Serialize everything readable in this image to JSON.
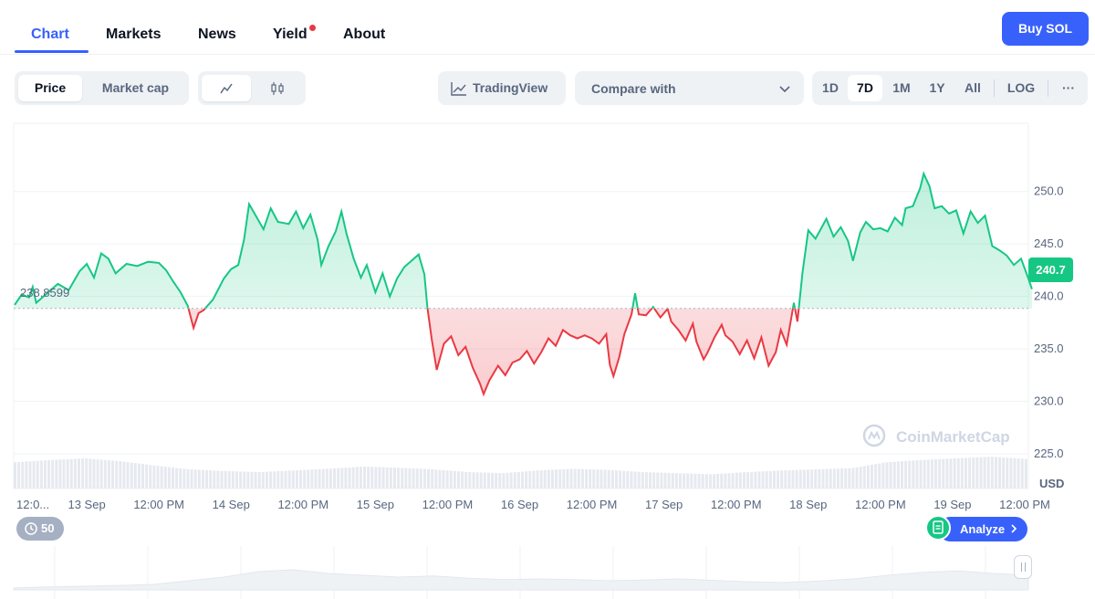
{
  "nav": {
    "tabs": [
      {
        "label": "Chart",
        "active": true
      },
      {
        "label": "Markets"
      },
      {
        "label": "News"
      },
      {
        "label": "Yield",
        "has_dot": true
      },
      {
        "label": "About"
      }
    ],
    "buy_label": "Buy SOL"
  },
  "toolbar": {
    "metric_tabs": [
      "Price",
      "Market cap"
    ],
    "metric_active": "Price",
    "chart_types": [
      "line-chart-icon",
      "candlestick-icon"
    ],
    "tradingview_label": "TradingView",
    "compare_label": "Compare with",
    "ranges": [
      "1D",
      "7D",
      "1M",
      "1Y",
      "All",
      "LOG"
    ],
    "range_active": "7D",
    "more_label": "···"
  },
  "chart_data": {
    "type": "line",
    "ylabel": "USD",
    "yticks": [
      "250.0",
      "245.0",
      "240.0",
      "235.0",
      "230.0",
      "225.0"
    ],
    "ylim": [
      221.7,
      256.5
    ],
    "baseline": 238.8599,
    "baseline_label": "238.8599",
    "last_value_label": "240.7",
    "x_labels": [
      "12:0...",
      "13 Sep",
      "12:00 PM",
      "14 Sep",
      "12:00 PM",
      "15 Sep",
      "12:00 PM",
      "16 Sep",
      "12:00 PM",
      "17 Sep",
      "12:00 PM",
      "18 Sep",
      "12:00 PM",
      "19 Sep",
      "12:00 PM"
    ],
    "x_domain": [
      0,
      14
    ],
    "series": [
      {
        "color_up": "#16c784",
        "color_down": "#ea3943",
        "points": [
          [
            0.0,
            239.2
          ],
          [
            0.1,
            240.2
          ],
          [
            0.2,
            239.9
          ],
          [
            0.25,
            240.9
          ],
          [
            0.3,
            239.4
          ],
          [
            0.45,
            240.3
          ],
          [
            0.6,
            241.2
          ],
          [
            0.75,
            240.6
          ],
          [
            0.9,
            242.4
          ],
          [
            1.0,
            243.1
          ],
          [
            1.1,
            241.8
          ],
          [
            1.2,
            244.1
          ],
          [
            1.3,
            243.6
          ],
          [
            1.4,
            242.2
          ],
          [
            1.55,
            243.1
          ],
          [
            1.7,
            242.9
          ],
          [
            1.85,
            243.3
          ],
          [
            2.0,
            243.2
          ],
          [
            2.1,
            242.5
          ],
          [
            2.2,
            241.4
          ],
          [
            2.3,
            240.4
          ],
          [
            2.4,
            239.1
          ],
          [
            2.48,
            237.0
          ],
          [
            2.55,
            238.4
          ],
          [
            2.62,
            238.7
          ],
          [
            2.75,
            239.7
          ],
          [
            2.9,
            241.7
          ],
          [
            3.0,
            242.6
          ],
          [
            3.1,
            243.0
          ],
          [
            3.18,
            245.4
          ],
          [
            3.25,
            248.8
          ],
          [
            3.35,
            247.6
          ],
          [
            3.45,
            246.4
          ],
          [
            3.55,
            248.4
          ],
          [
            3.65,
            247.1
          ],
          [
            3.8,
            246.9
          ],
          [
            3.9,
            248.1
          ],
          [
            4.0,
            246.5
          ],
          [
            4.1,
            247.8
          ],
          [
            4.2,
            245.4
          ],
          [
            4.25,
            243.0
          ],
          [
            4.35,
            244.8
          ],
          [
            4.45,
            246.2
          ],
          [
            4.53,
            248.1
          ],
          [
            4.6,
            246.0
          ],
          [
            4.7,
            243.6
          ],
          [
            4.8,
            241.8
          ],
          [
            4.88,
            243.0
          ],
          [
            5.0,
            240.4
          ],
          [
            5.1,
            242.2
          ],
          [
            5.2,
            240.0
          ],
          [
            5.3,
            241.7
          ],
          [
            5.4,
            242.8
          ],
          [
            5.5,
            243.4
          ],
          [
            5.6,
            244.0
          ],
          [
            5.68,
            242.1
          ],
          [
            5.72,
            239.0
          ],
          [
            5.78,
            236.0
          ],
          [
            5.85,
            233.0
          ],
          [
            5.95,
            235.5
          ],
          [
            6.05,
            236.2
          ],
          [
            6.15,
            234.4
          ],
          [
            6.25,
            235.2
          ],
          [
            6.35,
            233.2
          ],
          [
            6.45,
            231.7
          ],
          [
            6.5,
            230.7
          ],
          [
            6.58,
            232.0
          ],
          [
            6.7,
            233.4
          ],
          [
            6.8,
            232.5
          ],
          [
            6.9,
            233.7
          ],
          [
            7.0,
            234.0
          ],
          [
            7.1,
            234.8
          ],
          [
            7.2,
            233.6
          ],
          [
            7.3,
            234.7
          ],
          [
            7.4,
            236.0
          ],
          [
            7.5,
            235.3
          ],
          [
            7.6,
            236.8
          ],
          [
            7.7,
            236.3
          ],
          [
            7.8,
            236.0
          ],
          [
            7.9,
            236.3
          ],
          [
            8.0,
            236.0
          ],
          [
            8.1,
            235.5
          ],
          [
            8.2,
            236.4
          ],
          [
            8.25,
            233.5
          ],
          [
            8.3,
            232.4
          ],
          [
            8.38,
            234.2
          ],
          [
            8.45,
            236.4
          ],
          [
            8.55,
            238.3
          ],
          [
            8.6,
            240.3
          ],
          [
            8.65,
            238.3
          ],
          [
            8.75,
            238.2
          ],
          [
            8.85,
            239.0
          ],
          [
            8.95,
            238.0
          ],
          [
            9.05,
            238.8
          ],
          [
            9.1,
            237.6
          ],
          [
            9.2,
            236.8
          ],
          [
            9.3,
            235.8
          ],
          [
            9.4,
            237.4
          ],
          [
            9.45,
            235.7
          ],
          [
            9.55,
            234.0
          ],
          [
            9.6,
            234.6
          ],
          [
            9.7,
            236.1
          ],
          [
            9.8,
            237.3
          ],
          [
            9.85,
            236.3
          ],
          [
            9.95,
            235.7
          ],
          [
            10.05,
            234.5
          ],
          [
            10.15,
            235.8
          ],
          [
            10.25,
            234.1
          ],
          [
            10.35,
            236.1
          ],
          [
            10.45,
            233.4
          ],
          [
            10.55,
            234.7
          ],
          [
            10.62,
            236.8
          ],
          [
            10.7,
            235.4
          ],
          [
            10.8,
            239.4
          ],
          [
            10.85,
            237.6
          ],
          [
            10.92,
            242.3
          ],
          [
            11.0,
            246.3
          ],
          [
            11.1,
            245.5
          ],
          [
            11.25,
            247.4
          ],
          [
            11.35,
            245.7
          ],
          [
            11.45,
            246.6
          ],
          [
            11.55,
            245.3
          ],
          [
            11.62,
            243.4
          ],
          [
            11.72,
            246.1
          ],
          [
            11.8,
            247.1
          ],
          [
            11.9,
            246.4
          ],
          [
            12.0,
            246.5
          ],
          [
            12.1,
            246.2
          ],
          [
            12.2,
            247.5
          ],
          [
            12.3,
            246.8
          ],
          [
            12.35,
            248.4
          ],
          [
            12.45,
            248.6
          ],
          [
            12.55,
            250.3
          ],
          [
            12.6,
            251.7
          ],
          [
            12.68,
            250.5
          ],
          [
            12.75,
            248.4
          ],
          [
            12.85,
            248.6
          ],
          [
            12.95,
            247.9
          ],
          [
            13.05,
            248.2
          ],
          [
            13.15,
            246.0
          ],
          [
            13.25,
            248.1
          ],
          [
            13.35,
            247.0
          ],
          [
            13.45,
            247.7
          ],
          [
            13.55,
            244.8
          ],
          [
            13.65,
            244.4
          ],
          [
            13.75,
            243.9
          ],
          [
            13.85,
            243.0
          ],
          [
            13.95,
            243.6
          ],
          [
            14.05,
            241.7
          ],
          [
            14.1,
            240.7
          ]
        ]
      }
    ],
    "volume_levels": [
      0.48,
      0.52,
      0.55,
      0.5,
      0.42,
      0.35,
      0.32,
      0.3,
      0.33,
      0.36,
      0.4,
      0.38,
      0.35,
      0.3,
      0.28,
      0.33,
      0.36,
      0.34,
      0.3,
      0.28,
      0.26,
      0.3,
      0.33,
      0.35,
      0.37,
      0.48,
      0.52,
      0.55,
      0.58,
      0.54
    ]
  },
  "watermark": "CoinMarketCap",
  "events_count": "50",
  "analyze_label": "Analyze",
  "navigator_profile": [
    0.05,
    0.08,
    0.1,
    0.12,
    0.15,
    0.25,
    0.35,
    0.5,
    0.55,
    0.45,
    0.4,
    0.35,
    0.38,
    0.32,
    0.28,
    0.3,
    0.28,
    0.25,
    0.27,
    0.3,
    0.26,
    0.22,
    0.2,
    0.24,
    0.3,
    0.4,
    0.48,
    0.52,
    0.45,
    0.4
  ]
}
